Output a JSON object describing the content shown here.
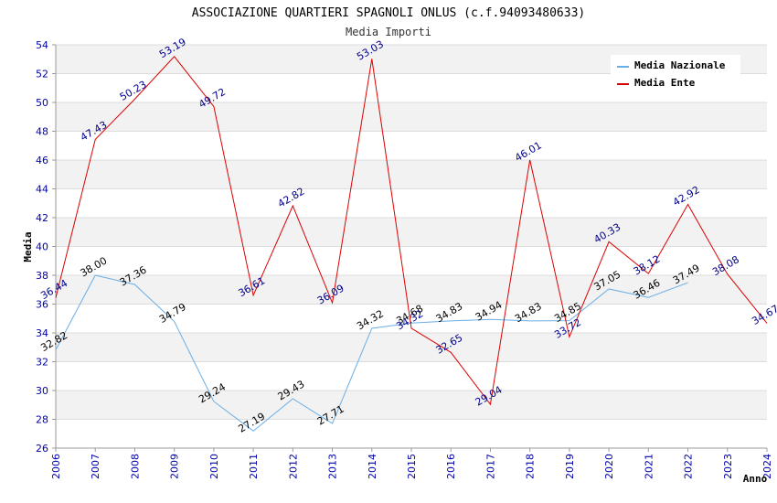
{
  "chart_data": {
    "type": "line",
    "title": "ASSOCIAZIONE QUARTIERI SPAGNOLI ONLUS (c.f.94093480633)",
    "subtitle": "Media Importi",
    "xlabel": "Anno",
    "ylabel": "Media",
    "ylim": [
      26,
      54
    ],
    "yticks": [
      26,
      28,
      30,
      32,
      34,
      36,
      38,
      40,
      42,
      44,
      46,
      48,
      50,
      52,
      54
    ],
    "categories": [
      "2006",
      "2007",
      "2008",
      "2009",
      "2010",
      "2011",
      "2012",
      "2013",
      "2014",
      "2015",
      "2016",
      "2017",
      "2018",
      "2019",
      "2020",
      "2021",
      "2022",
      "2023",
      "2024"
    ],
    "grid": true,
    "legend_position": "top-right",
    "series": [
      {
        "name": "Media Nazionale",
        "color": "#6aaee6",
        "label_color": "#000000",
        "values": [
          32.82,
          38.0,
          37.36,
          34.79,
          29.24,
          27.19,
          29.43,
          27.71,
          34.32,
          34.68,
          34.83,
          34.94,
          34.83,
          34.85,
          37.05,
          36.46,
          37.49,
          null,
          null
        ],
        "labels": [
          "32.82",
          "38.00",
          "37.36",
          "34.79",
          "29.24",
          "27.19",
          "29.43",
          "27.71",
          "34.32",
          "34.68",
          "34.83",
          "34.94",
          "34.83",
          "34.85",
          "37.05",
          "36.46",
          "37.49",
          null,
          null
        ]
      },
      {
        "name": "Media Ente",
        "color": "#dd0000",
        "label_color": "#00008b",
        "values": [
          36.44,
          47.43,
          50.23,
          53.19,
          49.72,
          36.61,
          42.82,
          36.09,
          53.03,
          34.32,
          32.65,
          29.04,
          46.01,
          33.72,
          40.33,
          38.12,
          42.92,
          38.08,
          34.67
        ],
        "labels": [
          "36.44",
          "47.43",
          "50.23",
          "53.19",
          "49.72",
          "36.61",
          "42.82",
          "36.09",
          "53.03",
          "34.32",
          "32.65",
          "29.04",
          "46.01",
          "33.72",
          "40.33",
          "38.12",
          "42.92",
          "38.08",
          "34.67"
        ]
      }
    ]
  }
}
